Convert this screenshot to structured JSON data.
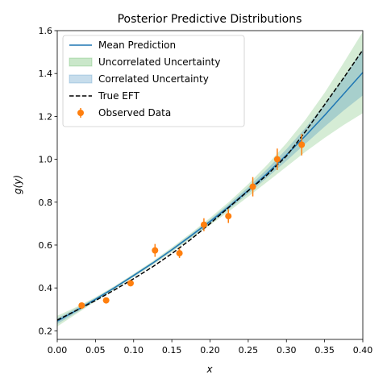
{
  "chart_data": {
    "type": "line",
    "title": "Posterior Predictive Distributions",
    "xlabel": "x",
    "ylabel": "g(y)",
    "xlim": [
      0.0,
      0.4
    ],
    "ylim": [
      0.16,
      1.6
    ],
    "xticks": [
      0.0,
      0.05,
      0.1,
      0.15,
      0.2,
      0.25,
      0.3,
      0.35,
      0.4
    ],
    "xtick_labels": [
      "0.00",
      "0.05",
      "0.10",
      "0.15",
      "0.20",
      "0.25",
      "0.30",
      "0.35",
      "0.40"
    ],
    "yticks": [
      0.2,
      0.4,
      0.6,
      0.8,
      1.0,
      1.2,
      1.4,
      1.6
    ],
    "ytick_labels": [
      "0.2",
      "0.4",
      "0.6",
      "0.8",
      "1.0",
      "1.2",
      "1.4",
      "1.6"
    ],
    "grid": false,
    "legend_position": "top-left",
    "legend": [
      {
        "label": "Mean Prediction",
        "kind": "line",
        "color": "#1f77b4"
      },
      {
        "label": "Uncorrelated Uncertainty",
        "kind": "band",
        "color": "#2ca02c"
      },
      {
        "label": "Correlated Uncertainty",
        "kind": "band",
        "color": "#1f77b4"
      },
      {
        "label": "True EFT",
        "kind": "dashed",
        "color": "#000000"
      },
      {
        "label": "Observed Data",
        "kind": "errorbar",
        "color": "#ff7f0e"
      }
    ],
    "series": [
      {
        "name": "Mean Prediction",
        "kind": "line",
        "color": "#1f77b4",
        "x": [
          0.0,
          0.025,
          0.05,
          0.075,
          0.1,
          0.125,
          0.15,
          0.175,
          0.2,
          0.225,
          0.25,
          0.275,
          0.3,
          0.325,
          0.35,
          0.375,
          0.4
        ],
        "y": [
          0.245,
          0.295,
          0.347,
          0.401,
          0.458,
          0.516,
          0.578,
          0.643,
          0.71,
          0.78,
          0.855,
          0.935,
          1.02,
          1.11,
          1.205,
          1.305,
          1.405
        ]
      },
      {
        "name": "Uncorrelated Uncertainty",
        "kind": "band",
        "color": "#2ca02c",
        "x": [
          0.0,
          0.025,
          0.05,
          0.075,
          0.1,
          0.125,
          0.15,
          0.175,
          0.2,
          0.225,
          0.25,
          0.275,
          0.3,
          0.325,
          0.35,
          0.375,
          0.4
        ],
        "lower": [
          0.22,
          0.279,
          0.337,
          0.393,
          0.45,
          0.507,
          0.567,
          0.63,
          0.693,
          0.758,
          0.826,
          0.895,
          0.965,
          1.035,
          1.1,
          1.16,
          1.215
        ],
        "upper": [
          0.27,
          0.311,
          0.357,
          0.409,
          0.466,
          0.525,
          0.589,
          0.656,
          0.727,
          0.802,
          0.884,
          0.975,
          1.075,
          1.185,
          1.31,
          1.45,
          1.595
        ]
      },
      {
        "name": "Correlated Uncertainty",
        "kind": "band",
        "color": "#1f77b4",
        "x": [
          0.0,
          0.025,
          0.05,
          0.075,
          0.1,
          0.125,
          0.15,
          0.175,
          0.2,
          0.225,
          0.25,
          0.275,
          0.3,
          0.325,
          0.35,
          0.375,
          0.4
        ],
        "lower": [
          0.232,
          0.285,
          0.341,
          0.396,
          0.453,
          0.511,
          0.572,
          0.636,
          0.701,
          0.768,
          0.84,
          0.915,
          0.993,
          1.073,
          1.152,
          1.228,
          1.298
        ],
        "upper": [
          0.258,
          0.305,
          0.353,
          0.406,
          0.463,
          0.521,
          0.584,
          0.65,
          0.719,
          0.792,
          0.87,
          0.955,
          1.047,
          1.147,
          1.258,
          1.382,
          1.512
        ]
      },
      {
        "name": "True EFT",
        "kind": "dashed",
        "color": "#000000",
        "x": [
          0.0,
          0.025,
          0.05,
          0.075,
          0.1,
          0.125,
          0.15,
          0.175,
          0.2,
          0.225,
          0.25,
          0.275,
          0.3,
          0.325,
          0.35,
          0.375,
          0.4
        ],
        "y": [
          0.25,
          0.295,
          0.341,
          0.391,
          0.443,
          0.499,
          0.56,
          0.627,
          0.7,
          0.777,
          0.853,
          0.928,
          1.015,
          1.13,
          1.255,
          1.38,
          1.51
        ]
      },
      {
        "name": "Observed Data",
        "kind": "errorbar",
        "color": "#ff7f0e",
        "x": [
          0.032,
          0.064,
          0.096,
          0.128,
          0.16,
          0.192,
          0.224,
          0.256,
          0.288,
          0.32
        ],
        "y": [
          0.318,
          0.342,
          0.422,
          0.575,
          0.562,
          0.695,
          0.735,
          0.872,
          1.0,
          1.068
        ],
        "err": [
          0.01,
          0.013,
          0.014,
          0.03,
          0.022,
          0.03,
          0.032,
          0.045,
          0.05,
          0.05
        ]
      }
    ]
  }
}
